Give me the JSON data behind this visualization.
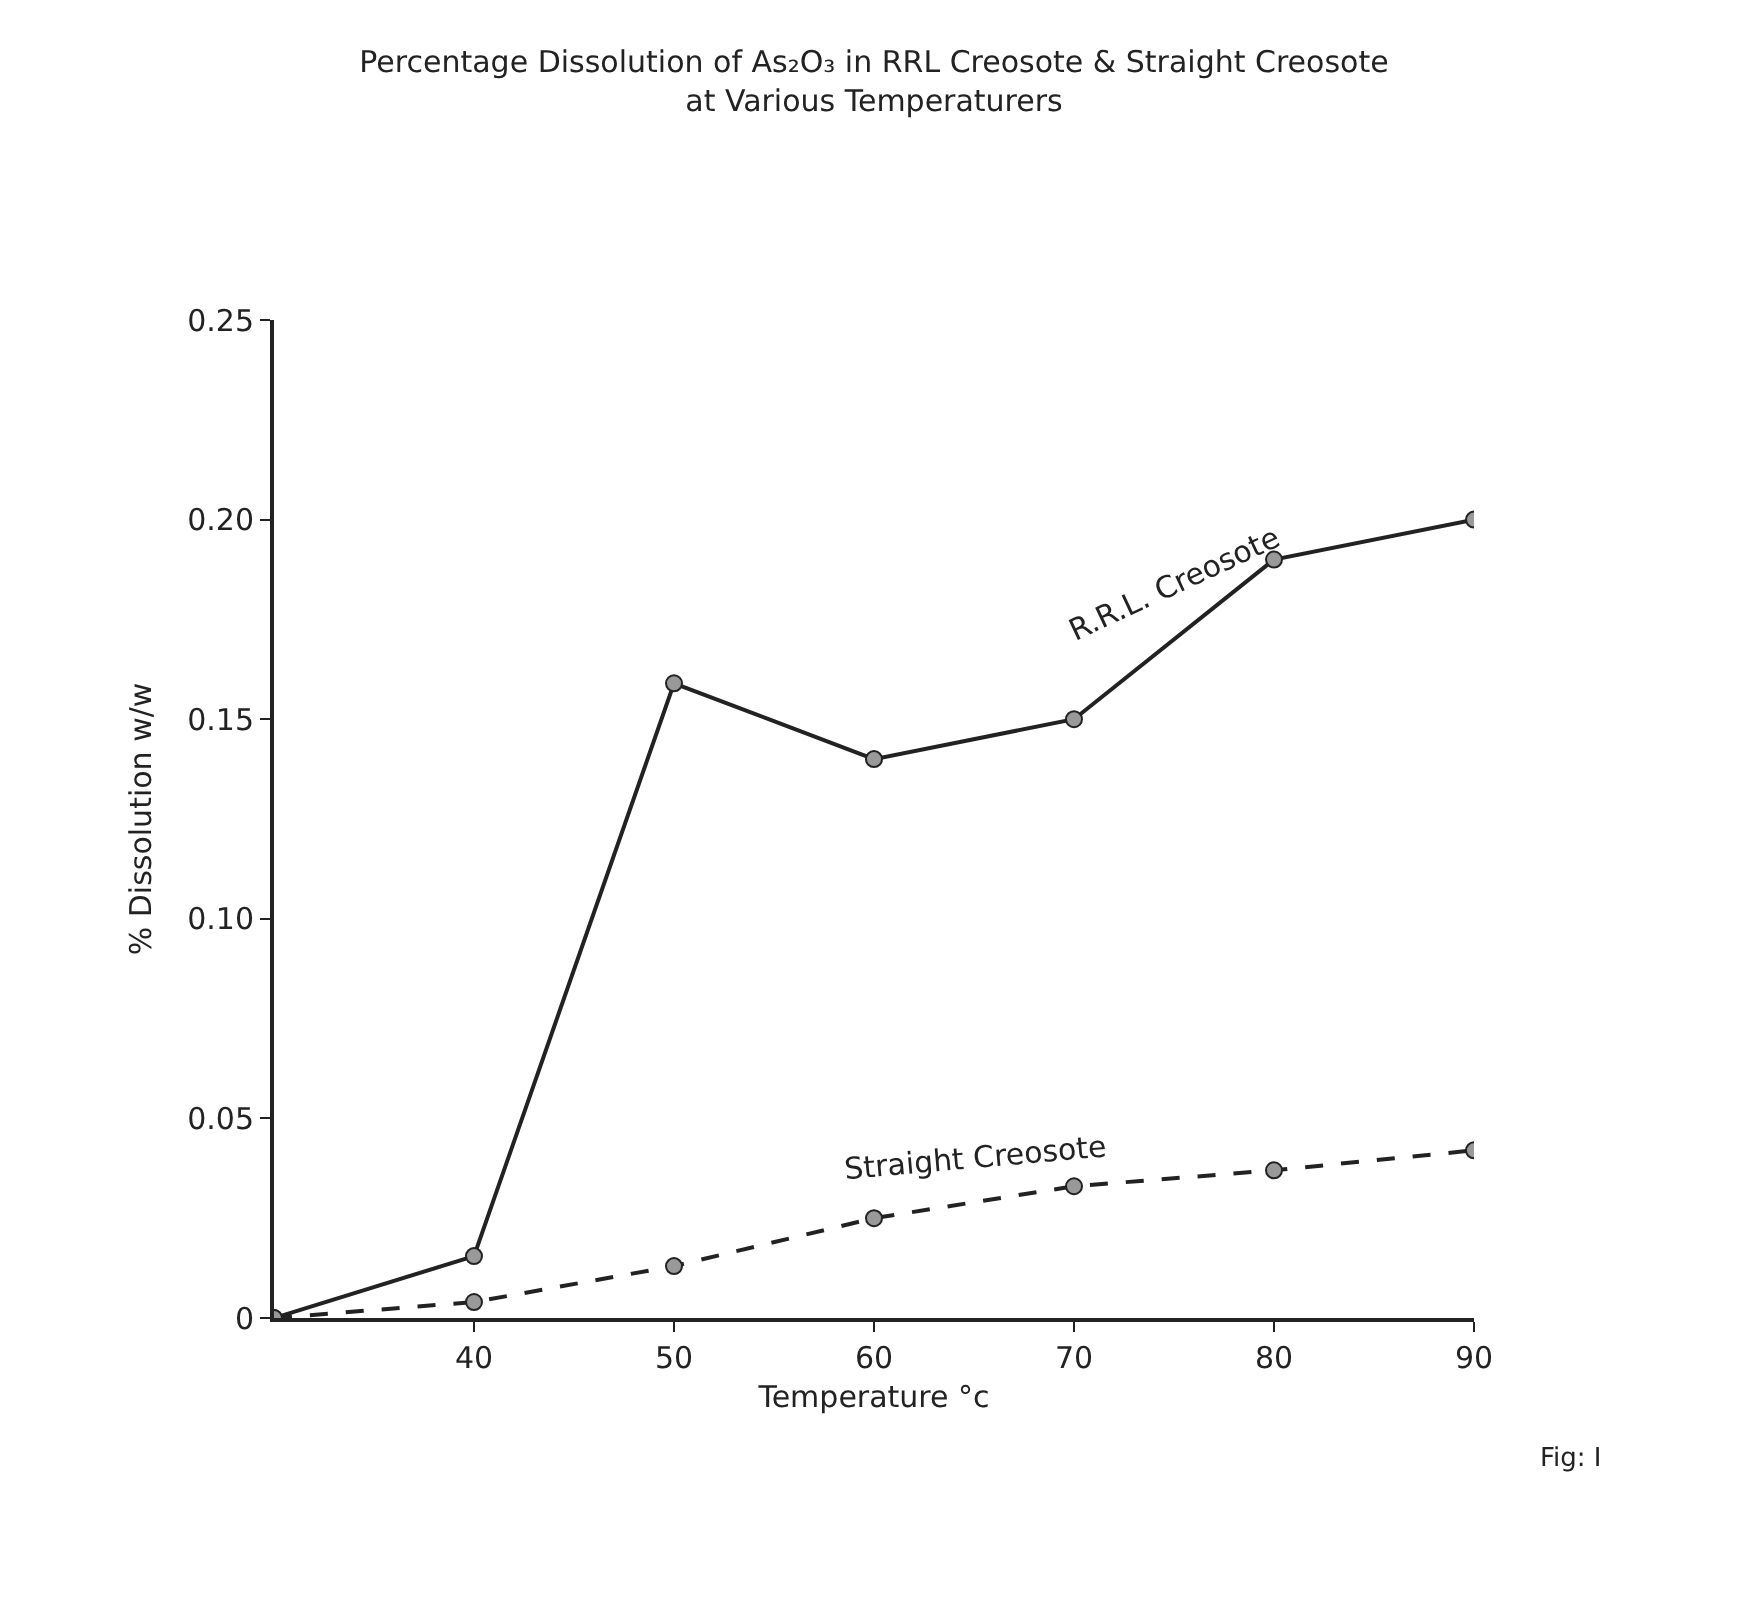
{
  "chart_data": {
    "type": "line",
    "title": "Percentage Dissolution of As₂O₃ in RRL Creosote & Straight Creosote\nat Various Temperaturers",
    "xlabel": "Temperature °c",
    "ylabel": "% Dissolution w/w",
    "x": [
      30,
      40,
      50,
      60,
      70,
      80,
      90
    ],
    "series": [
      {
        "name": "R.R.L. Creosote",
        "color": "#222222",
        "line_style": "solid",
        "values": [
          0,
          0.0155,
          0.159,
          0.14,
          0.15,
          0.19,
          0.2
        ]
      },
      {
        "name": "Straight Creosote",
        "color": "#222222",
        "line_style": "dashed",
        "values": [
          0,
          0.004,
          0.013,
          0.025,
          0.033,
          0.037,
          0.042
        ]
      }
    ],
    "xlim": [
      30,
      90
    ],
    "xticks": [
      40,
      50,
      60,
      70,
      80,
      90
    ],
    "ylim": [
      0,
      0.25
    ],
    "yticks": [
      0,
      0.05,
      {
        "value": 0.1,
        "label": "0.10"
      },
      0.15,
      {
        "value": 0.2,
        "label": "0.20"
      },
      0.25
    ],
    "annotations": [
      "Fig: I"
    ],
    "grid": false,
    "legend": false,
    "marker": "circle"
  }
}
